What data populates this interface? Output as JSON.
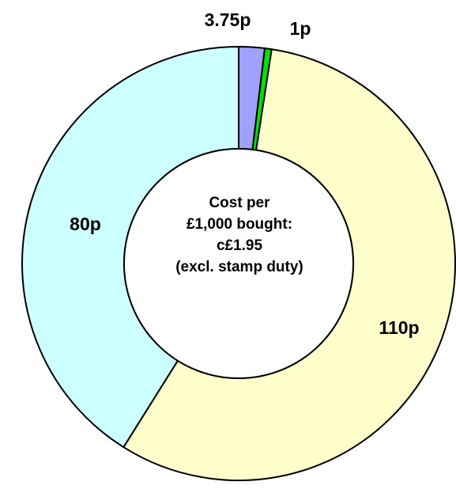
{
  "chart_data": {
    "type": "donut",
    "values": [
      3.75,
      1,
      110,
      80
    ],
    "value_labels": [
      "3.75p",
      "1p",
      "110p",
      "80p"
    ],
    "colors": [
      "#a0a0ff",
      "#00e000",
      "#ffffcc",
      "#ccffff"
    ],
    "annotations": [
      "Cost per",
      "£1,000 bought:",
      "c£1.95",
      "(excl. stamp duty)"
    ]
  }
}
